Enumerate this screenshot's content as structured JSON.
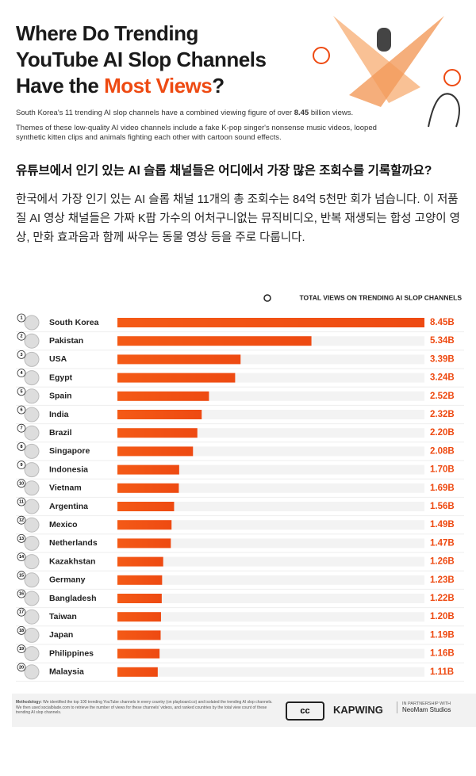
{
  "header": {
    "title_line1": "Where Do Trending",
    "title_line2": "YouTube AI Slop Channels",
    "title_line3a": "Have the ",
    "title_line3b": "Most Views",
    "title_line3c": "?",
    "subtitle_a": "South Korea's 11 trending AI slop channels have a combined viewing figure of over ",
    "subtitle_b": "8.45",
    "subtitle_c": " billion views.",
    "description": "Themes of these low-quality AI video channels include a fake K-pop singer's nonsense music videos, looped synthetic kitten clips and animals fighting each other with cartoon sound effects."
  },
  "korean": {
    "heading": "유튜브에서 인기 있는 AI 슬롭 채널들은 어디에서 가장 많은 조회수를 기록할까요?",
    "paragraph": "한국에서 가장 인기 있는 AI 슬롭 채널 11개의 총 조회수는 84억 5천만 회가 넘습니다. 이 저품질 AI 영상 채널들은 가짜 K팝 가수의 어처구니없는 뮤직비디오, 반복 재생되는 합성 고양이 영상, 만화 효과음과 함께 싸우는 동물 영상 등을 주로 다룹니다."
  },
  "chart_data": {
    "type": "bar",
    "orientation": "horizontal",
    "legend": "TOTAL VIEWS ON TRENDING AI SLOP CHANNELS",
    "ranks": [
      1,
      2,
      3,
      4,
      5,
      6,
      7,
      8,
      9,
      10,
      11,
      12,
      13,
      14,
      15,
      16,
      17,
      18,
      19,
      20
    ],
    "categories": [
      "South Korea",
      "Pakistan",
      "USA",
      "Egypt",
      "Spain",
      "India",
      "Brazil",
      "Singapore",
      "Indonesia",
      "Vietnam",
      "Argentina",
      "Mexico",
      "Netherlands",
      "Kazakhstan",
      "Germany",
      "Bangladesh",
      "Taiwan",
      "Japan",
      "Philippines",
      "Malaysia"
    ],
    "values": [
      8.45,
      5.34,
      3.39,
      3.24,
      2.52,
      2.32,
      2.2,
      2.08,
      1.7,
      1.69,
      1.56,
      1.49,
      1.47,
      1.26,
      1.23,
      1.22,
      1.2,
      1.19,
      1.16,
      1.11
    ],
    "value_labels": [
      "8.45B",
      "5.34B",
      "3.39B",
      "3.24B",
      "2.52B",
      "2.32B",
      "2.20B",
      "2.08B",
      "1.70B",
      "1.69B",
      "1.56B",
      "1.49B",
      "1.47B",
      "1.26B",
      "1.23B",
      "1.22B",
      "1.20B",
      "1.19B",
      "1.16B",
      "1.11B"
    ],
    "color": "#ee4a12"
  },
  "footer": {
    "methodology_label": "Methodology:",
    "methodology": "We identified the top 100 trending YouTube channels in every country (on playboard.co) and isolated the trending AI slop channels. We then used socialblade.com to retrieve the number of views for these channels' videos, and ranked countries by the total view count of these trending AI slop channels.",
    "cc": "cc",
    "brand": "KAPWING",
    "partner_label": "IN PARTNERSHIP WITH",
    "partner": "NeoMam Studios"
  }
}
